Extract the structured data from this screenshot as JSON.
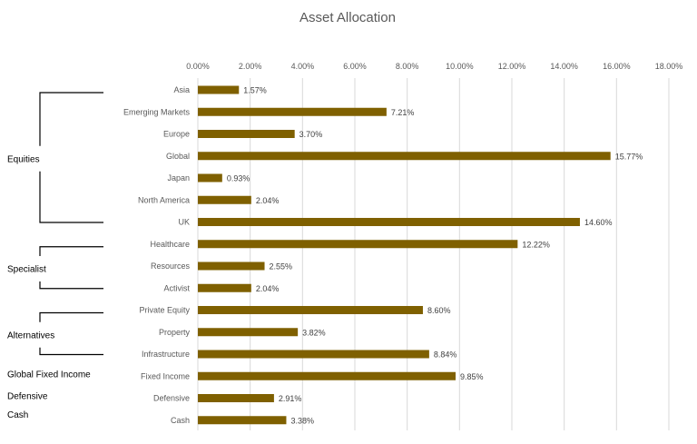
{
  "chart_data": {
    "type": "bar",
    "orientation": "horizontal",
    "title": "Asset Allocation",
    "xlabel": "",
    "ylabel": "",
    "xlim": [
      0,
      18
    ],
    "x_ticks": [
      "0.00%",
      "2.00%",
      "4.00%",
      "6.00%",
      "8.00%",
      "10.00%",
      "12.00%",
      "14.00%",
      "16.00%",
      "18.00%"
    ],
    "categories": [
      "Asia",
      "Emerging Markets",
      "Europe",
      "Global",
      "Japan",
      "North America",
      "UK",
      "Healthcare",
      "Resources",
      "Activist",
      "Private Equity",
      "Property",
      "Infrastructure",
      "Fixed Income",
      "Defensive",
      "Cash"
    ],
    "values": [
      1.57,
      7.21,
      3.7,
      15.77,
      0.93,
      2.04,
      14.6,
      12.22,
      2.55,
      2.04,
      8.6,
      3.82,
      8.84,
      9.85,
      2.91,
      3.38
    ],
    "data_labels": [
      "1.57%",
      "7.21%",
      "3.70%",
      "15.77%",
      "0.93%",
      "2.04%",
      "14.60%",
      "12.22%",
      "2.55%",
      "2.04%",
      "8.60%",
      "3.82%",
      "8.84%",
      "9.85%",
      "2.91%",
      "3.38%"
    ],
    "groups": [
      {
        "label": "Equities",
        "first": 0,
        "last": 6,
        "bracket": true
      },
      {
        "label": "Specialist",
        "first": 7,
        "last": 9,
        "bracket": true
      },
      {
        "label": "Alternatives",
        "first": 10,
        "last": 12,
        "bracket": true
      },
      {
        "label": "Global Fixed Income",
        "first": 13,
        "last": 13,
        "bracket": false
      },
      {
        "label": "Defensive",
        "first": 14,
        "last": 14,
        "bracket": false
      },
      {
        "label": "Cash",
        "first": 15,
        "last": 15,
        "bracket": false
      }
    ],
    "grid": true,
    "legend": "none",
    "bar_color": "#7f6000"
  }
}
